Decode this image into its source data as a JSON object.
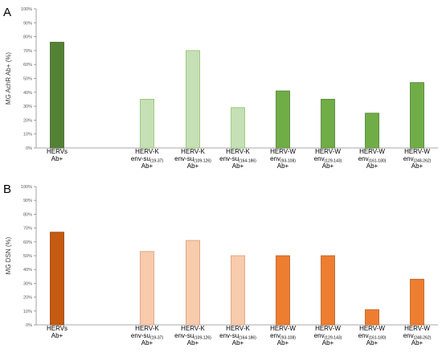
{
  "chart_data": [
    {
      "type": "bar",
      "panel_label": "A",
      "ylabel": "MG AchR Ab+ (%)",
      "ylim": [
        0,
        100
      ],
      "yticks": [
        "0%",
        "10%",
        "20%",
        "30%",
        "40%",
        "50%",
        "60%",
        "70%",
        "80%",
        "90%",
        "100%"
      ],
      "grid": false,
      "categories": [
        {
          "lines": [
            {
              "main": "HERVs"
            },
            {
              "main": "Ab+"
            }
          ]
        },
        {
          "lines": [
            {
              "main": "HERV-K"
            },
            {
              "main": "env-su",
              "sub": "(19-37)"
            },
            {
              "main": "Ab+"
            }
          ]
        },
        {
          "lines": [
            {
              "main": "HERV-K"
            },
            {
              "main": "env-su",
              "sub": "(109-126)"
            },
            {
              "main": "Ab+"
            }
          ]
        },
        {
          "lines": [
            {
              "main": "HERV-K"
            },
            {
              "main": "env-su",
              "sub": "(164-186)"
            },
            {
              "main": "Ab+"
            }
          ]
        },
        {
          "lines": [
            {
              "main": "HERV-W"
            },
            {
              "main": "env",
              "sub": "(93-108)"
            },
            {
              "main": "Ab+"
            }
          ]
        },
        {
          "lines": [
            {
              "main": "HERV-W"
            },
            {
              "main": "env",
              "sub": "(129-143)"
            },
            {
              "main": "Ab+"
            }
          ]
        },
        {
          "lines": [
            {
              "main": "HERV-W"
            },
            {
              "main": "env",
              "sub": "(161-180)"
            },
            {
              "main": "Ab+"
            }
          ]
        },
        {
          "lines": [
            {
              "main": "HERV-W"
            },
            {
              "main": "env",
              "sub": "(248-262)"
            },
            {
              "main": "Ab+"
            }
          ]
        }
      ],
      "values": [
        76,
        35,
        70,
        29,
        41,
        35,
        25,
        47
      ],
      "colors": [
        "#548235",
        "#c5e0b4",
        "#c5e0b4",
        "#c5e0b4",
        "#70ad47",
        "#70ad47",
        "#70ad47",
        "#70ad47"
      ],
      "strokes": [
        "#3f6327",
        "#8fbf6f",
        "#8fbf6f",
        "#8fbf6f",
        "#507e33",
        "#507e33",
        "#507e33",
        "#507e33"
      ]
    },
    {
      "type": "bar",
      "panel_label": "B",
      "ylabel": "MG DSN (%)",
      "ylim": [
        0,
        100
      ],
      "yticks": [
        "0%",
        "10%",
        "20%",
        "30%",
        "40%",
        "50%",
        "60%",
        "70%",
        "80%",
        "90%",
        "100%"
      ],
      "grid": false,
      "categories": [
        {
          "lines": [
            {
              "main": "HERVs"
            },
            {
              "main": "Ab+"
            }
          ]
        },
        {
          "lines": [
            {
              "main": "HERV-K"
            },
            {
              "main": "env-su",
              "sub": "(19-37)"
            },
            {
              "main": "Ab+"
            }
          ]
        },
        {
          "lines": [
            {
              "main": "HERV-K"
            },
            {
              "main": "env-su",
              "sub": "(109-126)"
            },
            {
              "main": "Ab+"
            }
          ]
        },
        {
          "lines": [
            {
              "main": "HERV-K"
            },
            {
              "main": "env-su",
              "sub": "(164-186)"
            },
            {
              "main": "Ab+"
            }
          ]
        },
        {
          "lines": [
            {
              "main": "HERV-W"
            },
            {
              "main": "env",
              "sub": "(93-108)"
            },
            {
              "main": "Ab+"
            }
          ]
        },
        {
          "lines": [
            {
              "main": "HERV-W"
            },
            {
              "main": "env",
              "sub": "(129-143)"
            },
            {
              "main": "Ab+"
            }
          ]
        },
        {
          "lines": [
            {
              "main": "HERV-W"
            },
            {
              "main": "env",
              "sub": "(161-180)"
            },
            {
              "main": "Ab+"
            }
          ]
        },
        {
          "lines": [
            {
              "main": "HERV-W"
            },
            {
              "main": "env",
              "sub": "(248-262)"
            },
            {
              "main": "Ab+"
            }
          ]
        }
      ],
      "values": [
        67,
        53,
        61,
        50,
        50,
        50,
        11,
        33
      ],
      "colors": [
        "#c55a11",
        "#f8cbad",
        "#f8cbad",
        "#f8cbad",
        "#ed7d31",
        "#ed7d31",
        "#ed7d31",
        "#ed7d31"
      ],
      "strokes": [
        "#8f3f0b",
        "#d99a72",
        "#d99a72",
        "#d99a72",
        "#b85d1f",
        "#b85d1f",
        "#b85d1f",
        "#b85d1f"
      ]
    }
  ]
}
